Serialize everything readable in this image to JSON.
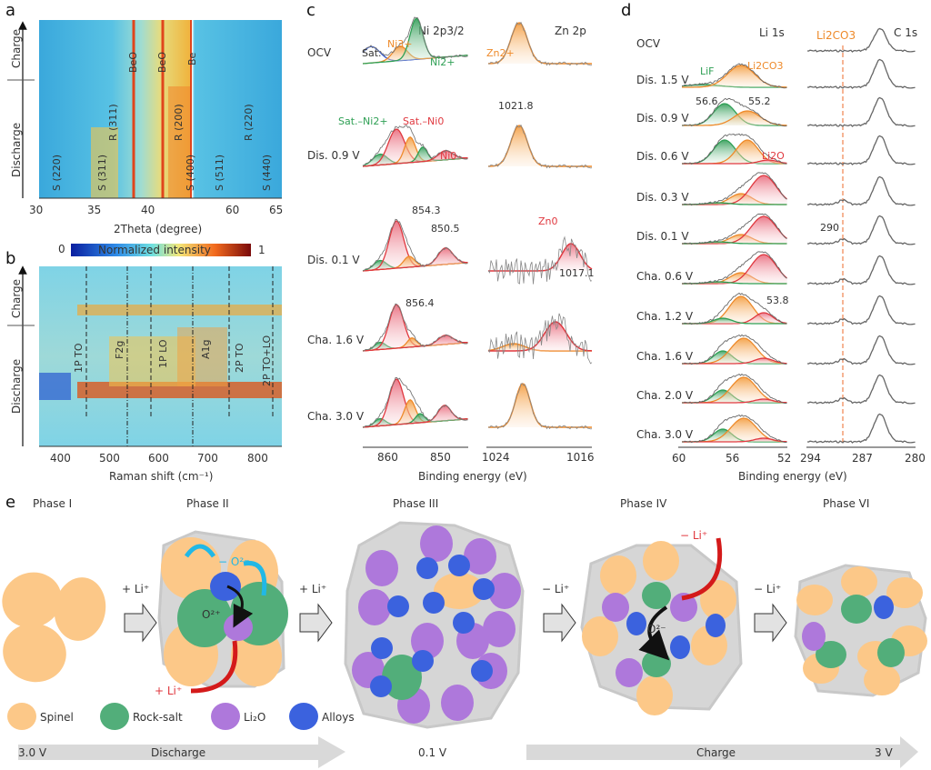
{
  "figure": {
    "panels": {
      "a": {
        "label": "a",
        "ylabel_top": "Charge",
        "ylabel_bottom": "Discharge",
        "xlabel": "2Theta (degree)",
        "xticks_left": [
          "30",
          "35",
          "40"
        ],
        "xticks_right": [
          "60",
          "65"
        ],
        "annotations": [
          "S (220)",
          "S (311)",
          "R (311)",
          "BeO",
          "BeO",
          "R (200)",
          "S (400)",
          "Be",
          "S (511)",
          "R (220)",
          "S (440)"
        ]
      },
      "b": {
        "label": "b",
        "colorbar_label": "Normalized intensity",
        "colorbar_min": "0",
        "colorbar_max": "1",
        "ylabel_top": "Charge",
        "ylabel_bottom": "Discharge",
        "xlabel": "Raman shift (cm⁻¹)",
        "xticks": [
          "400",
          "500",
          "600",
          "700",
          "800"
        ],
        "modes": [
          "1P TO",
          "F2g",
          "1P LO",
          "A1g",
          "2P TO",
          "2P TO+LO"
        ]
      },
      "c": {
        "label": "c",
        "row_labels": [
          "OCV",
          "Dis. 0.9 V",
          "Dis. 0.1 V",
          "Cha. 1.6 V",
          "Cha. 3.0 V"
        ],
        "ni_title": "Ni 2p3/2",
        "zn_title": "Zn 2p",
        "ni_peaks": [
          "Sat.",
          "Ni3+",
          "Ni2+",
          "Sat.–Ni2+",
          "Sat.–Ni0",
          "Ni0"
        ],
        "zn_peaks": [
          "Zn2+",
          "Zn0"
        ],
        "values": [
          "1021.8",
          "854.3",
          "850.5",
          "1017.1",
          "856.4"
        ],
        "ni_xticks": [
          "860",
          "850"
        ],
        "zn_xticks": [
          "1024",
          "1016"
        ],
        "xlabel": "Binding energy (eV)"
      },
      "d": {
        "label": "d",
        "row_labels": [
          "OCV",
          "Dis. 1.5 V",
          "Dis. 0.9 V",
          "Dis. 0.6 V",
          "Dis. 0.3 V",
          "Dis. 0.1 V",
          "Cha. 0.6 V",
          "Cha. 1.2 V",
          "Cha. 1.6 V",
          "Cha. 2.0 V",
          "Cha. 3.0 V"
        ],
        "li_title": "Li 1s",
        "c_title": "C 1s",
        "li_peaks": [
          "LiF",
          "Li2CO3",
          "Li2O"
        ],
        "c_marker": "Li2CO3",
        "values": [
          "56.6",
          "55.2",
          "53.8",
          "290"
        ],
        "li_xticks": [
          "60",
          "56",
          "52"
        ],
        "c_xticks": [
          "294",
          "287",
          "280"
        ],
        "xlabel": "Binding energy (eV)"
      },
      "e": {
        "label": "e",
        "phases": [
          "Phase I",
          "Phase II",
          "Phase III",
          "Phase IV",
          "Phase VI"
        ],
        "step_labels": [
          "+ Li⁺",
          "+ Li⁺",
          "− Li⁺",
          "− Li⁺"
        ],
        "phase2_labels": {
          "o_out": "− O²⁻",
          "o_in": "O²⁺",
          "li_in": "+ Li⁺"
        },
        "phase4_labels": {
          "li_out": "− Li⁺",
          "o": "O²⁻"
        },
        "legend": [
          {
            "name": "Spinel",
            "color": "#fcc888"
          },
          {
            "name": "Rock-salt",
            "color": "#52ae7a"
          },
          {
            "name": "Li₂O",
            "color": "#ae78db"
          },
          {
            "name": "Alloys",
            "color": "#3b62de"
          }
        ],
        "discharge_arrow": {
          "start": "3.0 V",
          "label": "Discharge",
          "end": "0.1 V"
        },
        "charge_arrow": {
          "label": "Charge",
          "end": "3 V"
        }
      }
    },
    "colors": {
      "orange": "#ee8a2a",
      "green": "#2fa055",
      "red": "#e0383f",
      "blue": "#3558cc",
      "grey_trace": "#666666",
      "cyan": "#21b8e6"
    }
  }
}
